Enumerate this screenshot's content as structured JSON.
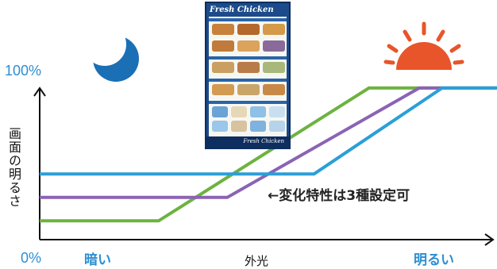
{
  "chart_data": {
    "type": "line",
    "ylabel": "画面の明るさ",
    "xlabel": "外光",
    "y_top_label": "100%",
    "y_bottom_label": "0%",
    "x_left_label": "暗い",
    "x_right_label": "明るい",
    "annotation": "←変化特性は3種設定可",
    "xlim": [
      0,
      100
    ],
    "ylim": [
      0,
      100
    ],
    "series": [
      {
        "color": "#6cb33f",
        "points": [
          [
            0,
            10
          ],
          [
            26,
            10
          ],
          [
            72,
            95
          ],
          [
            100,
            95
          ]
        ]
      },
      {
        "color": "#8a63b5",
        "points": [
          [
            0,
            25
          ],
          [
            41,
            25
          ],
          [
            83,
            95
          ],
          [
            100,
            95
          ]
        ]
      },
      {
        "color": "#2b9fd8",
        "points": [
          [
            0,
            40
          ],
          [
            60,
            40
          ],
          [
            88,
            95
          ],
          [
            100,
            95
          ]
        ]
      }
    ]
  },
  "poster": {
    "title": "Fresh Chicken",
    "footer": "Fresh Chicken"
  },
  "icons": {
    "moon": "moon-icon",
    "sun": "sun-icon",
    "moon_color": "#1b6fb5",
    "sun_color": "#e8552a"
  }
}
